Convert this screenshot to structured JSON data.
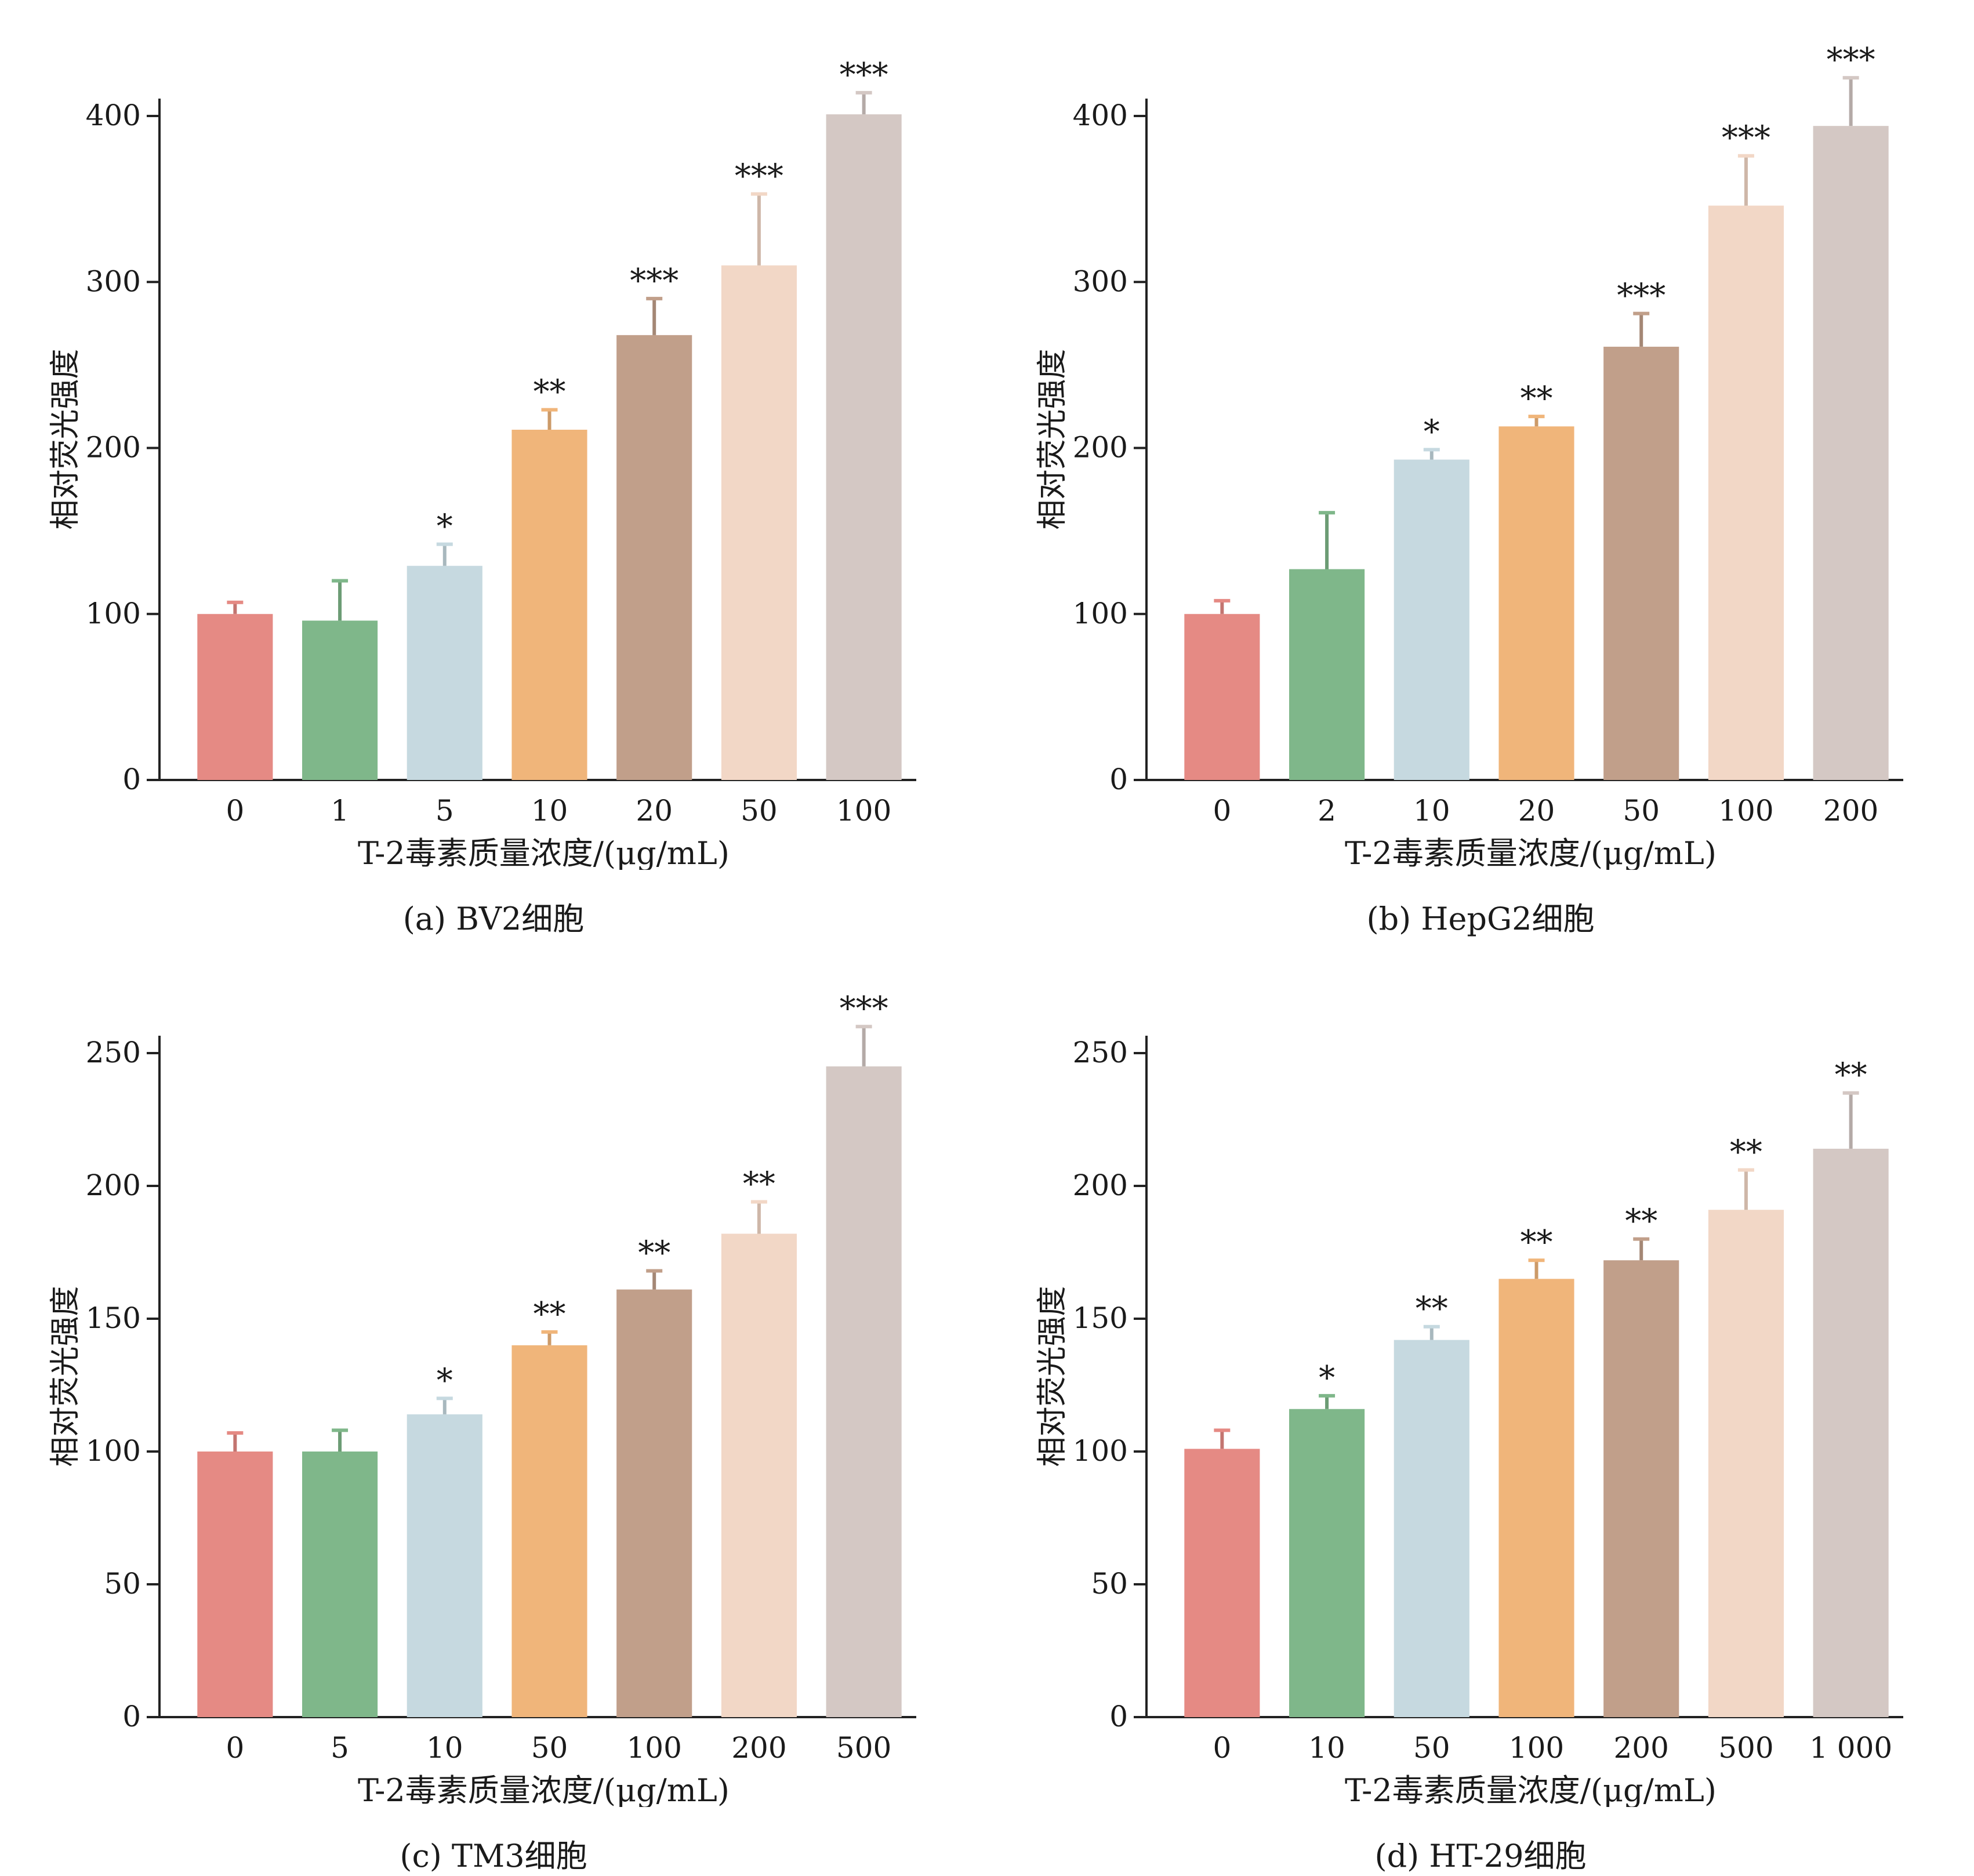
{
  "colors": [
    "#e58a84",
    "#7fb78a",
    "#c6d9e0",
    "#f0b57a",
    "#c19f8a",
    "#f2d7c6",
    "#d4c8c4"
  ],
  "chart_data": [
    {
      "type": "bar",
      "caption": "(a) BV2细胞",
      "xlabel": "T-2毒素质量浓度/(μg/mL)",
      "ylabel": "相对荧光强度",
      "ylim": [
        0,
        400
      ],
      "yticks": [
        "0",
        "100",
        "200",
        "300",
        "400"
      ],
      "categories": [
        "0",
        "1",
        "5",
        "10",
        "20",
        "50",
        "100"
      ],
      "values": [
        100,
        96,
        129,
        211,
        268,
        310,
        401
      ],
      "errors": [
        7,
        24,
        13,
        12,
        22,
        43,
        13
      ],
      "significance": [
        "",
        "",
        "*",
        "**",
        "***",
        "***",
        "***"
      ]
    },
    {
      "type": "bar",
      "caption": "(b) HepG2细胞",
      "xlabel": "T-2毒素质量浓度/(μg/mL)",
      "ylabel": "相对荧光强度",
      "ylim": [
        0,
        400
      ],
      "yticks": [
        "0",
        "100",
        "200",
        "300",
        "400"
      ],
      "categories": [
        "0",
        "2",
        "10",
        "20",
        "50",
        "100",
        "200"
      ],
      "values": [
        100,
        127,
        193,
        213,
        261,
        346,
        394
      ],
      "errors": [
        8,
        34,
        6,
        6,
        20,
        30,
        29
      ],
      "significance": [
        "",
        "",
        "*",
        "**",
        "***",
        "***",
        "***"
      ]
    },
    {
      "type": "bar",
      "caption": "(c) TM3细胞",
      "xlabel": "T-2毒素质量浓度/(μg/mL)",
      "ylabel": "相对荧光强度",
      "ylim": [
        0,
        250
      ],
      "yticks": [
        "0",
        "50",
        "100",
        "150",
        "200",
        "250"
      ],
      "categories": [
        "0",
        "5",
        "10",
        "50",
        "100",
        "200",
        "500"
      ],
      "values": [
        100,
        100,
        114,
        140,
        161,
        182,
        245
      ],
      "errors": [
        7,
        8,
        6,
        5,
        7,
        12,
        15
      ],
      "significance": [
        "",
        "",
        "*",
        "**",
        "**",
        "**",
        "***"
      ]
    },
    {
      "type": "bar",
      "caption": "(d) HT-29细胞",
      "xlabel": "T-2毒素质量浓度/(μg/mL)",
      "ylabel": "相对荧光强度",
      "ylim": [
        0,
        250
      ],
      "yticks": [
        "0",
        "50",
        "100",
        "150",
        "200",
        "250"
      ],
      "categories": [
        "0",
        "10",
        "50",
        "100",
        "200",
        "500",
        "1 000"
      ],
      "values": [
        101,
        116,
        142,
        165,
        172,
        191,
        214
      ],
      "errors": [
        7,
        5,
        5,
        7,
        8,
        15,
        21
      ],
      "significance": [
        "",
        "*",
        "**",
        "**",
        "**",
        "**",
        "**"
      ]
    }
  ]
}
